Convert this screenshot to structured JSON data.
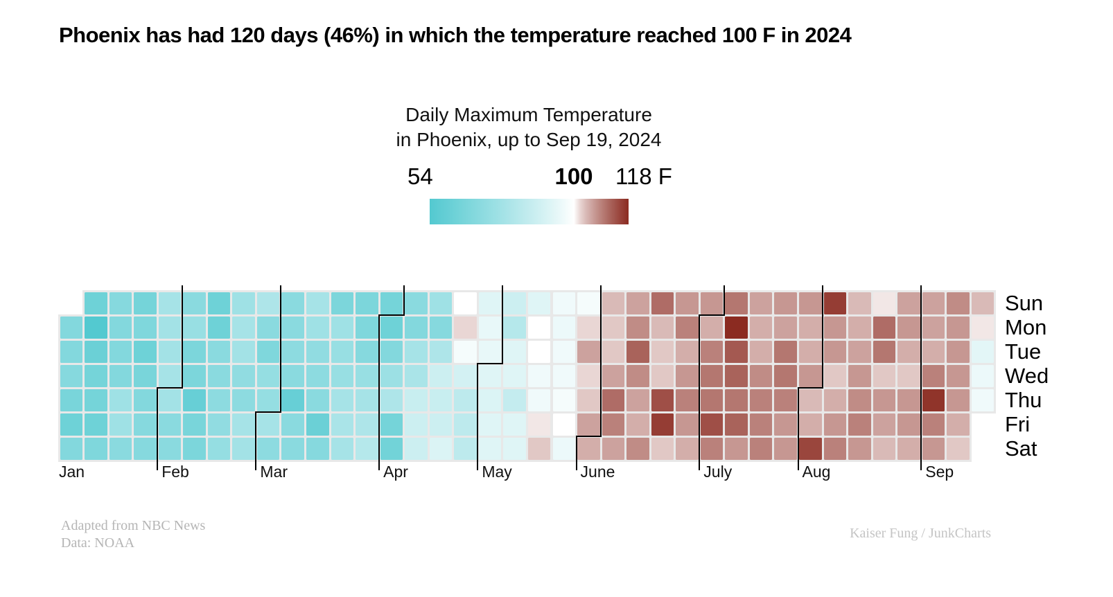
{
  "page_title": "Phoenix has had 120 days (46%) in which the temperature reached 100 F in 2024",
  "legend": {
    "title_line1": "Daily Maximum Temperature",
    "title_line2": "in Phoenix, up to Sep 19, 2024",
    "min_label": "54",
    "mid_label": "100",
    "max_label": "118 F"
  },
  "colors": {
    "cold": "#53C9D0",
    "neutral": "#FFFFFF",
    "hot": "#8B2B21",
    "grid_gap": "#E8E8E8",
    "month_line": "#000000"
  },
  "chart_data": {
    "type": "heatmap",
    "title": "Daily Maximum Temperature in Phoenix, up to Sep 19, 2024",
    "unit": "F",
    "value_range": [
      54,
      118
    ],
    "neutral_value": 100,
    "days_total": 263,
    "days_at_or_above_100": 120,
    "row_labels": [
      "Sun",
      "Mon",
      "Tue",
      "Wed",
      "Thu",
      "Fri",
      "Sat"
    ],
    "months": [
      {
        "label": "Jan",
        "col": 0,
        "first_dow": 1
      },
      {
        "label": "Feb",
        "col": 4,
        "first_dow": 4
      },
      {
        "label": "Mar",
        "col": 8,
        "first_dow": 5
      },
      {
        "label": "Apr",
        "col": 13,
        "first_dow": 1
      },
      {
        "label": "May",
        "col": 17,
        "first_dow": 3
      },
      {
        "label": "June",
        "col": 21,
        "first_dow": 6
      },
      {
        "label": "July",
        "col": 26,
        "first_dow": 1
      },
      {
        "label": "Aug",
        "col": 30,
        "first_dow": 4
      },
      {
        "label": "Sep",
        "col": 35,
        "first_dow": 0
      }
    ],
    "weeks": [
      [
        null,
        68,
        68,
        69,
        65,
        62,
        68
      ],
      [
        62,
        54,
        61,
        64,
        64,
        62,
        67
      ],
      [
        69,
        68,
        68,
        68,
        76,
        76,
        70
      ],
      [
        64,
        67,
        62,
        65,
        68,
        69,
        69
      ],
      [
        78,
        77,
        77,
        78,
        77,
        70,
        70
      ],
      [
        70,
        74,
        66,
        66,
        60,
        65,
        66
      ],
      [
        62,
        62,
        70,
        70,
        71,
        72,
        73
      ],
      [
        76,
        78,
        77,
        72,
        71,
        78,
        77
      ],
      [
        80,
        70,
        67,
        73,
        73,
        78,
        71
      ],
      [
        70,
        70,
        71,
        70,
        60,
        70,
        70
      ],
      [
        78,
        76,
        72,
        71,
        70,
        61,
        69
      ],
      [
        66,
        76,
        74,
        74,
        78,
        79,
        78
      ],
      [
        66,
        67,
        69,
        74,
        78,
        80,
        82
      ],
      [
        64,
        62,
        68,
        75,
        80,
        64,
        63
      ],
      [
        70,
        68,
        78,
        79,
        87,
        88,
        88
      ],
      [
        76,
        69,
        80,
        88,
        87,
        88,
        92
      ],
      [
        100,
        102,
        98,
        90,
        84,
        84,
        84
      ],
      [
        93,
        95,
        95,
        93,
        92,
        93,
        93
      ],
      [
        88,
        82,
        93,
        93,
        86,
        93,
        93
      ],
      [
        93,
        100,
        100,
        97,
        97,
        101,
        103
      ],
      [
        97,
        96,
        97,
        97,
        98,
        100,
        96
      ],
      [
        98,
        102,
        106,
        102,
        103,
        106,
        105
      ],
      [
        104,
        103,
        103,
        106,
        111,
        109,
        106
      ],
      [
        106,
        108,
        112,
        108,
        106,
        105,
        108
      ],
      [
        111,
        104,
        103,
        103,
        114,
        116,
        103
      ],
      [
        107,
        109,
        105,
        107,
        109,
        107,
        105
      ],
      [
        107,
        105,
        109,
        110,
        110,
        114,
        109
      ],
      [
        110,
        118,
        113,
        112,
        110,
        112,
        107
      ],
      [
        106,
        105,
        105,
        108,
        109,
        109,
        109
      ],
      [
        107,
        106,
        110,
        110,
        109,
        107,
        107
      ],
      [
        107,
        105,
        105,
        107,
        104,
        105,
        115
      ],
      [
        116,
        107,
        107,
        103,
        105,
        107,
        109
      ],
      [
        104,
        105,
        106,
        107,
        108,
        109,
        107
      ],
      [
        101,
        111,
        110,
        103,
        107,
        106,
        104
      ],
      [
        106,
        107,
        105,
        103,
        107,
        107,
        105
      ],
      [
        106,
        106,
        105,
        109,
        117,
        109,
        107
      ],
      [
        108,
        107,
        107,
        107,
        107,
        105,
        103
      ],
      [
        104,
        101,
        94,
        96,
        97,
        null,
        null
      ]
    ]
  },
  "footer": {
    "left_line1": "Adapted from NBC News",
    "left_line2": "Data: NOAA",
    "right": "Kaiser Fung / JunkCharts"
  }
}
